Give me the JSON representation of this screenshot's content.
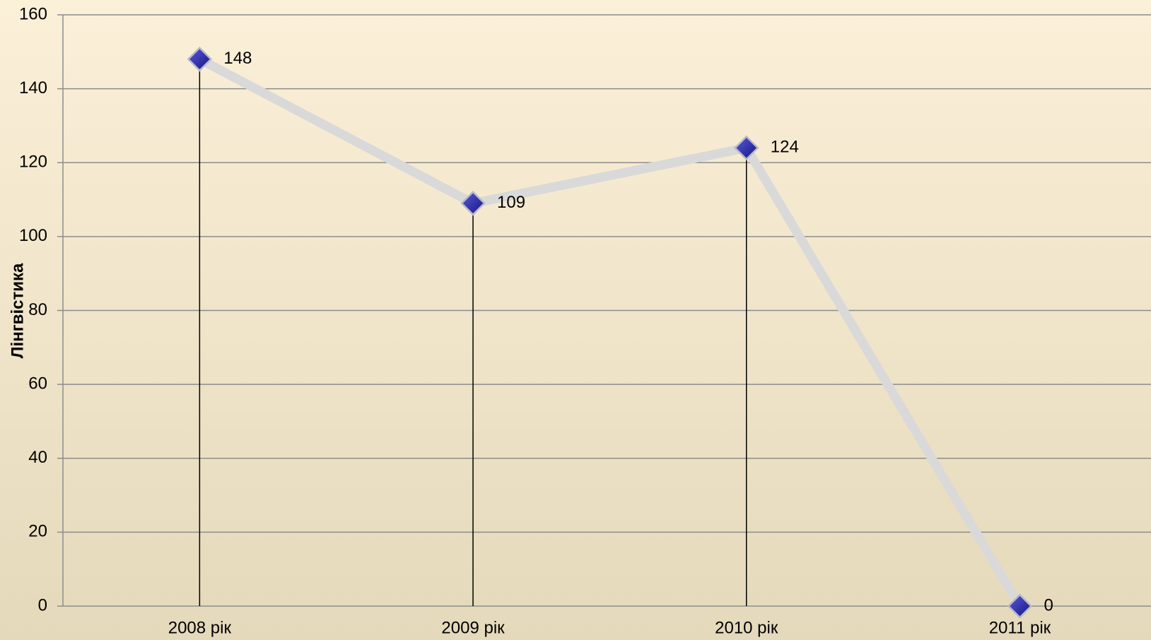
{
  "chart_data": {
    "type": "line",
    "y_label": "Лінгвістика",
    "categories": [
      "2008 рік",
      "2009 рік",
      "2010 рік",
      "2011 рік"
    ],
    "series": [
      {
        "name": "Лінгвістика",
        "color": "#d9d9d9",
        "marker_color": "#2b2ba6",
        "values": [
          148,
          109,
          124,
          0
        ]
      }
    ],
    "ylim": [
      0,
      160
    ],
    "yticks": [
      0,
      20,
      40,
      60,
      80,
      100,
      120,
      140,
      160
    ],
    "grid": true,
    "drop_lines": true,
    "data_labels": true
  }
}
